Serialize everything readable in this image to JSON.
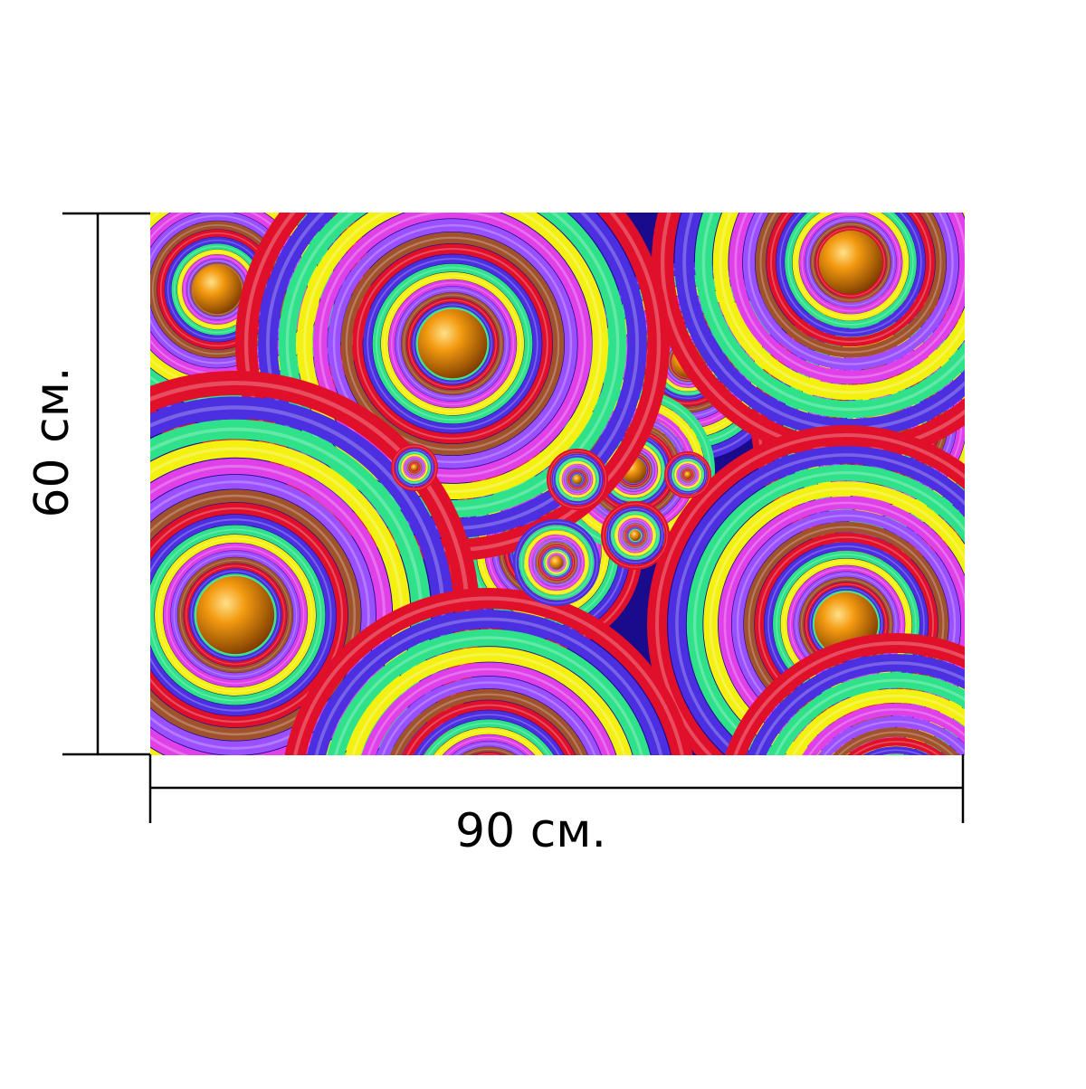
{
  "product": {
    "width_label": "90 см.",
    "height_label": "60 см."
  },
  "artwork": {
    "description_icon": "concentric-rings-pattern",
    "colors": {
      "background": "#1a0a8c",
      "red": "#e0102a",
      "blue": "#4b2fe0",
      "green": "#2fe28a",
      "yellow": "#f4f010",
      "magenta": "#e040e8",
      "violet": "#9a50ff",
      "brown": "#a0522d",
      "orange_sphere": "#e07a00"
    }
  }
}
